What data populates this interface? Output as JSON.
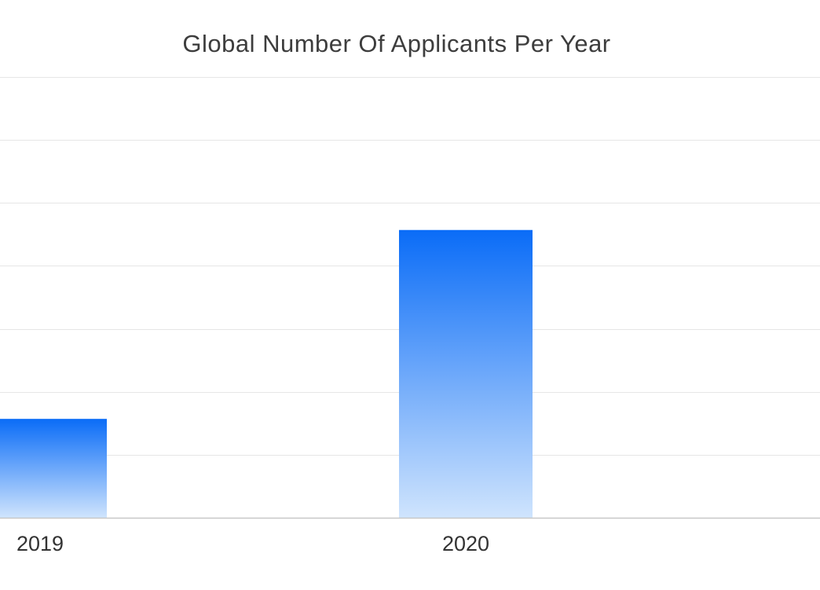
{
  "chart_data": {
    "type": "bar",
    "title": "Global Number Of Applicants Per Year",
    "xlabel": "",
    "ylabel": "",
    "categories": [
      "2019",
      "2020"
    ],
    "values": [
      1.57,
      4.57
    ],
    "ylim": [
      0,
      7
    ],
    "grid": true,
    "legend": "none",
    "colors": {
      "bar_top": "#0a6cf7",
      "bar_bottom": "#cfe4fd",
      "grid": "#e6e6e6",
      "axis": "#c8c8c8",
      "text": "#333333"
    }
  }
}
